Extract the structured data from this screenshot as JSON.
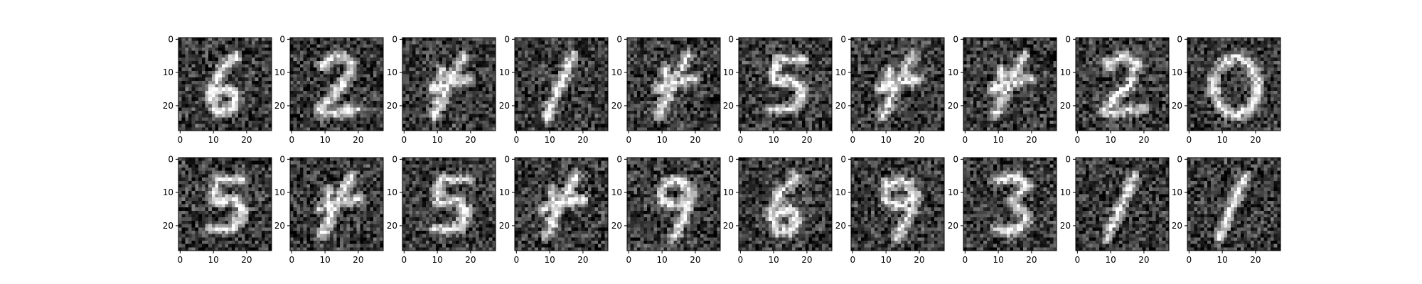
{
  "figure": {
    "title": "",
    "rows": 2,
    "cols": 10,
    "colormap": "gray",
    "background": "#ffffff",
    "axis_color": "#000000",
    "tick_color": "#000000"
  },
  "chart_data": {
    "type": "heatmap",
    "image_size": [
      28,
      28
    ],
    "xlim": [
      -0.5,
      27.5
    ],
    "ylim": [
      27.5,
      -0.5
    ],
    "x_ticks": [
      0,
      10,
      20
    ],
    "x_tick_labels": [
      "0",
      "10",
      "20"
    ],
    "y_ticks": [
      0,
      10,
      20
    ],
    "y_tick_labels": [
      "0",
      "10",
      "20"
    ],
    "grid": false,
    "noise_level": 0.45,
    "panels": [
      {
        "row": 0,
        "col": 0,
        "depicted": "6"
      },
      {
        "row": 0,
        "col": 1,
        "depicted": "2"
      },
      {
        "row": 0,
        "col": 2,
        "depicted": "4"
      },
      {
        "row": 0,
        "col": 3,
        "depicted": "1"
      },
      {
        "row": 0,
        "col": 4,
        "depicted": "4"
      },
      {
        "row": 0,
        "col": 5,
        "depicted": "5"
      },
      {
        "row": 0,
        "col": 6,
        "depicted": "4"
      },
      {
        "row": 0,
        "col": 7,
        "depicted": "4"
      },
      {
        "row": 0,
        "col": 8,
        "depicted": "2"
      },
      {
        "row": 0,
        "col": 9,
        "depicted": "0"
      },
      {
        "row": 1,
        "col": 0,
        "depicted": "5"
      },
      {
        "row": 1,
        "col": 1,
        "depicted": "4"
      },
      {
        "row": 1,
        "col": 2,
        "depicted": "5"
      },
      {
        "row": 1,
        "col": 3,
        "depicted": "4"
      },
      {
        "row": 1,
        "col": 4,
        "depicted": "9"
      },
      {
        "row": 1,
        "col": 5,
        "depicted": "6"
      },
      {
        "row": 1,
        "col": 6,
        "depicted": "9"
      },
      {
        "row": 1,
        "col": 7,
        "depicted": "3"
      },
      {
        "row": 1,
        "col": 8,
        "depicted": "1"
      },
      {
        "row": 1,
        "col": 9,
        "depicted": "1"
      }
    ]
  }
}
